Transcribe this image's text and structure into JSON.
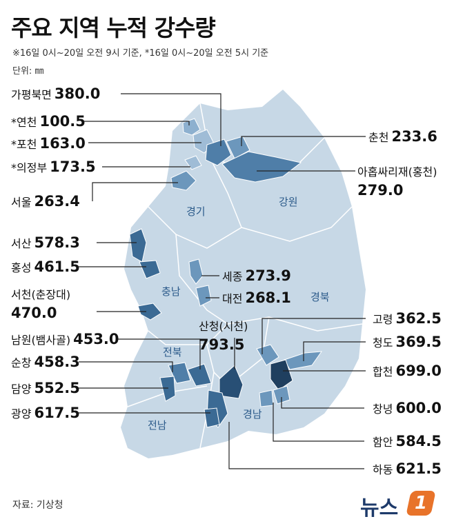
{
  "title": "주요 지역 누적 강수량",
  "note": "※16일 0시~20일 오전 9시 기준,  *16일 0시~20일 오전 5시 기준",
  "unit": "단위: ㎜",
  "source": "자료: 기상청",
  "logo": {
    "text": "뉴스",
    "badge": "1"
  },
  "colors": {
    "base": "#c7d8e6",
    "mid": "#6c97bc",
    "dark": "#3b6a94",
    "darker": "#284f75",
    "accent": "#e8732a"
  },
  "regions": {
    "gyeonggi": "경기",
    "gangwon": "강원",
    "chungnam": "충남",
    "gyeongbuk": "경북",
    "jeonbuk": "전북",
    "jeonnam": "전남",
    "gyeongnam": "경남"
  },
  "stations": [
    {
      "id": "gapyeong",
      "name": "가평북면",
      "value": "380.0"
    },
    {
      "id": "yeoncheon",
      "name": "*연천",
      "value": "100.5"
    },
    {
      "id": "pocheon",
      "name": "*포천",
      "value": "163.0"
    },
    {
      "id": "uijeongbu",
      "name": "*의정부",
      "value": "173.5"
    },
    {
      "id": "seoul",
      "name": "서울",
      "value": "263.4"
    },
    {
      "id": "seosan",
      "name": "서산",
      "value": "578.3"
    },
    {
      "id": "hongseong",
      "name": "홍성",
      "value": "461.5"
    },
    {
      "id": "seocheon",
      "name": "서천(춘장대)",
      "value": "470.0"
    },
    {
      "id": "namwon",
      "name": "남원(뱀사골)",
      "value": "453.0"
    },
    {
      "id": "sunchang",
      "name": "순창",
      "value": "458.3"
    },
    {
      "id": "damyang",
      "name": "담양",
      "value": "552.5"
    },
    {
      "id": "gwangyang",
      "name": "광양",
      "value": "617.5"
    },
    {
      "id": "chuncheon",
      "name": "춘천",
      "value": "233.6"
    },
    {
      "id": "hongcheon",
      "name": "아홉싸리재(홍천)",
      "value": "279.0"
    },
    {
      "id": "sejong",
      "name": "세종",
      "value": "273.9"
    },
    {
      "id": "daejeon",
      "name": "대전",
      "value": "268.1"
    },
    {
      "id": "sancheong",
      "name": "산청(시천)",
      "value": "793.5"
    },
    {
      "id": "goryeong",
      "name": "고령",
      "value": "362.5"
    },
    {
      "id": "cheongdo",
      "name": "청도",
      "value": "369.5"
    },
    {
      "id": "hapcheon",
      "name": "합천",
      "value": "699.0"
    },
    {
      "id": "changnyeong",
      "name": "창녕",
      "value": "600.0"
    },
    {
      "id": "haman",
      "name": "함안",
      "value": "584.5"
    },
    {
      "id": "hadong",
      "name": "하동",
      "value": "621.5"
    }
  ]
}
